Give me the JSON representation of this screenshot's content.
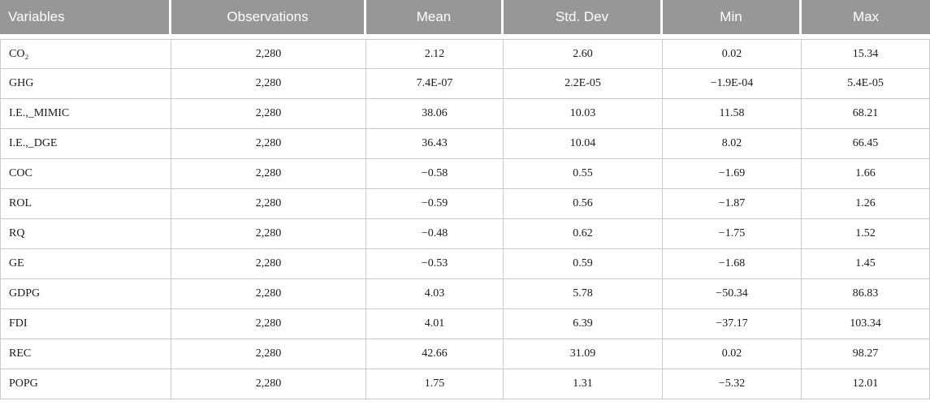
{
  "colors": {
    "header_bg": "#979797",
    "header_text": "#ffffff",
    "header_separator": "#ffffff",
    "border": "#c9c9c9",
    "body_text": "#1a1a1a",
    "page_bg": "#ffffff"
  },
  "columns": [
    {
      "key": "variable",
      "label": "Variables",
      "align": "left"
    },
    {
      "key": "observations",
      "label": "Observations",
      "align": "center"
    },
    {
      "key": "mean",
      "label": "Mean",
      "align": "center"
    },
    {
      "key": "std_dev",
      "label": "Std. Dev",
      "align": "center"
    },
    {
      "key": "min",
      "label": "Min",
      "align": "center"
    },
    {
      "key": "max",
      "label": "Max",
      "align": "center"
    }
  ],
  "rows": [
    {
      "variable": "CO₂",
      "observations": "2,280",
      "mean": "2.12",
      "std_dev": "2.60",
      "min": "0.02",
      "max": "15.34"
    },
    {
      "variable": "GHG",
      "observations": "2,280",
      "mean": "7.4E-07",
      "std_dev": "2.2E-05",
      "min": "−1.9E-04",
      "max": "5.4E-05"
    },
    {
      "variable": "I.E.,_MIMIC",
      "observations": "2,280",
      "mean": "38.06",
      "std_dev": "10.03",
      "min": "11.58",
      "max": "68.21"
    },
    {
      "variable": "I.E.,_DGE",
      "observations": "2,280",
      "mean": "36.43",
      "std_dev": "10.04",
      "min": "8.02",
      "max": "66.45"
    },
    {
      "variable": "COC",
      "observations": "2,280",
      "mean": "−0.58",
      "std_dev": "0.55",
      "min": "−1.69",
      "max": "1.66"
    },
    {
      "variable": "ROL",
      "observations": "2,280",
      "mean": "−0.59",
      "std_dev": "0.56",
      "min": "−1.87",
      "max": "1.26"
    },
    {
      "variable": "RQ",
      "observations": "2,280",
      "mean": "−0.48",
      "std_dev": "0.62",
      "min": "−1.75",
      "max": "1.52"
    },
    {
      "variable": "GE",
      "observations": "2,280",
      "mean": "−0.53",
      "std_dev": "0.59",
      "min": "−1.68",
      "max": "1.45"
    },
    {
      "variable": "GDPG",
      "observations": "2,280",
      "mean": "4.03",
      "std_dev": "5.78",
      "min": "−50.34",
      "max": "86.83"
    },
    {
      "variable": "FDI",
      "observations": "2,280",
      "mean": "4.01",
      "std_dev": "6.39",
      "min": "−37.17",
      "max": "103.34"
    },
    {
      "variable": "REC",
      "observations": "2,280",
      "mean": "42.66",
      "std_dev": "31.09",
      "min": "0.02",
      "max": "98.27"
    },
    {
      "variable": "POPG",
      "observations": "2,280",
      "mean": "1.75",
      "std_dev": "1.31",
      "min": "−5.32",
      "max": "12.01"
    }
  ]
}
